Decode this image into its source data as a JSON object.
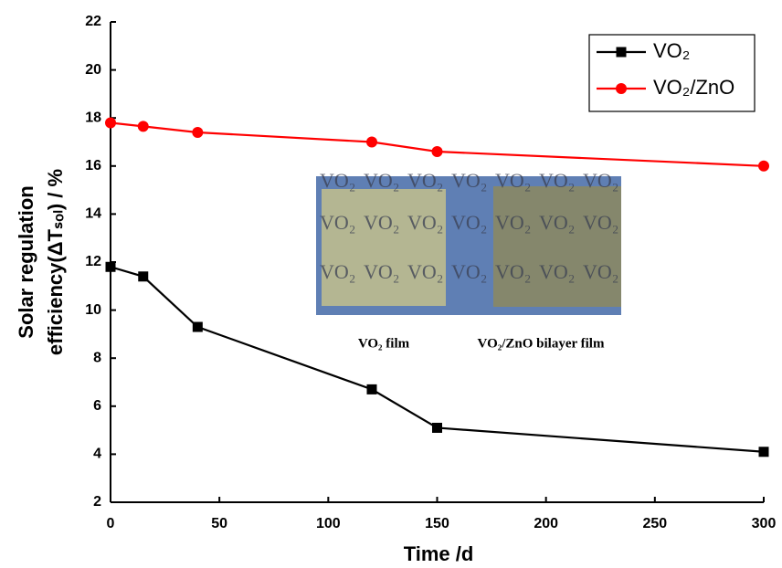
{
  "chart_data": {
    "type": "line",
    "xlabel": "Time /d",
    "ylabel": [
      "Solar regulation",
      "efficiency(ΔTₛₒₗ) / %"
    ],
    "x": [
      0,
      15,
      40,
      120,
      150,
      300
    ],
    "series": [
      {
        "name": "VO₂",
        "color": "#000000",
        "marker": "square",
        "values": [
          11.8,
          11.4,
          9.3,
          6.7,
          5.1,
          4.1
        ]
      },
      {
        "name": "VO₂/ZnO",
        "color": "#ff0000",
        "marker": "circle",
        "values": [
          17.8,
          17.65,
          17.4,
          17.0,
          16.6,
          16.0
        ]
      }
    ],
    "xlim": [
      0,
      300
    ],
    "xticks": [
      0,
      50,
      100,
      150,
      200,
      250,
      300
    ],
    "ylim": [
      2,
      22
    ],
    "yticks": [
      2,
      4,
      6,
      8,
      10,
      12,
      14,
      16,
      18,
      20,
      22
    ],
    "grid": false,
    "legend": "upper right",
    "inset": {
      "watermark": "VO₂",
      "captions": [
        "VO₂ film",
        "VO₂/ZnO bilayer film"
      ]
    }
  }
}
